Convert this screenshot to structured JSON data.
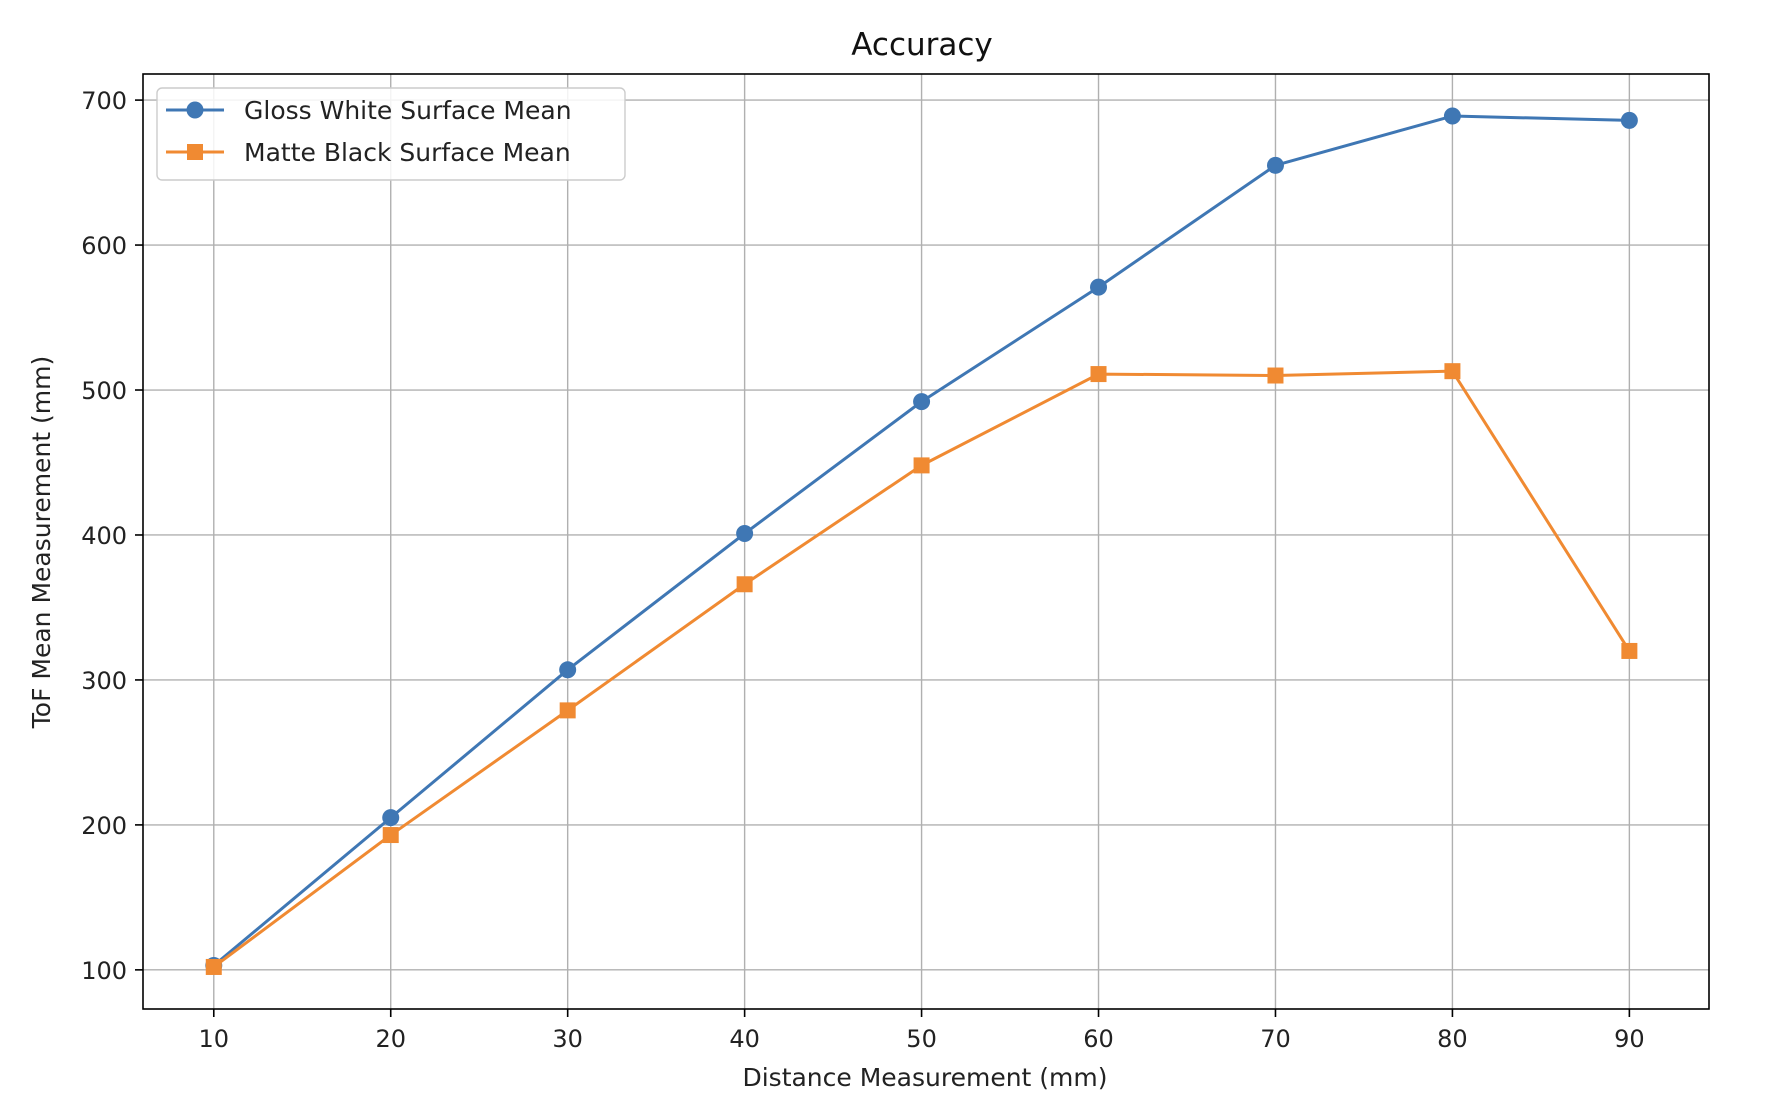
{
  "chart_data": {
    "type": "line",
    "title": "Accuracy",
    "xlabel": "Distance Measurement (mm)",
    "ylabel": "ToF Mean Measurement (mm)",
    "x": [
      10,
      20,
      30,
      40,
      50,
      60,
      70,
      80,
      90
    ],
    "xlim": [
      6,
      94.5
    ],
    "ylim": [
      73,
      718
    ],
    "xticks": [
      10,
      20,
      30,
      40,
      50,
      60,
      70,
      80,
      90
    ],
    "yticks": [
      100,
      200,
      300,
      400,
      500,
      600,
      700
    ],
    "grid": true,
    "legend_position": "top-left",
    "series": [
      {
        "name": "Gloss White Surface Mean",
        "marker": "circle",
        "color": "#3f77b4",
        "values": [
          103,
          205,
          307,
          401,
          492,
          571,
          655,
          689,
          686
        ]
      },
      {
        "name": "Matte Black Surface Mean",
        "marker": "square",
        "color": "#f08a32",
        "values": [
          102,
          193,
          279,
          366,
          448,
          511,
          510,
          513,
          320
        ]
      }
    ]
  }
}
